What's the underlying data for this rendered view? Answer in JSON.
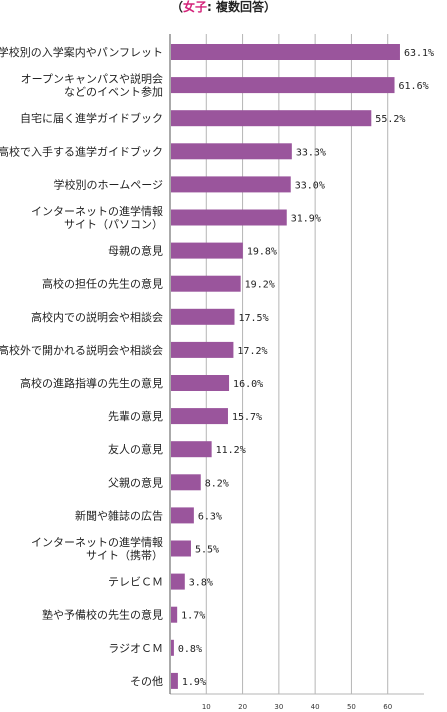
{
  "title": {
    "open": "（",
    "accent": "女子",
    "rest": ": 複数回答）"
  },
  "colors": {
    "bar": "#9a559c",
    "accent": "#d4237a",
    "grid": "#b5b5b5"
  },
  "chart_data": {
    "type": "bar",
    "orientation": "horizontal",
    "categories": [
      [
        "学校別の入学案内やパンフレット"
      ],
      [
        "オープンキャンパスや説明会",
        "などのイベント参加"
      ],
      [
        "自宅に届く進学ガイドブック"
      ],
      [
        "高校で入手する進学ガイドブック"
      ],
      [
        "学校別のホームページ"
      ],
      [
        "インターネットの進学情報",
        "サイト（パソコン）"
      ],
      [
        "母親の意見"
      ],
      [
        "高校の担任の先生の意見"
      ],
      [
        "高校内での説明会や相談会"
      ],
      [
        "高校外で開かれる説明会や相談会"
      ],
      [
        "高校の進路指導の先生の意見"
      ],
      [
        "先輩の意見"
      ],
      [
        "友人の意見"
      ],
      [
        "父親の意見"
      ],
      [
        "新聞や雑誌の広告"
      ],
      [
        "インターネットの進学情報",
        "サイト（携帯）"
      ],
      [
        "テレビＣＭ"
      ],
      [
        "塾や予備校の先生の意見"
      ],
      [
        "ラジオＣＭ"
      ],
      [
        "その他"
      ]
    ],
    "values": [
      63.1,
      61.6,
      55.2,
      33.3,
      33.0,
      31.9,
      19.8,
      19.2,
      17.5,
      17.2,
      16.0,
      15.7,
      11.2,
      8.2,
      6.3,
      5.5,
      3.8,
      1.7,
      0.8,
      1.9
    ],
    "value_labels": [
      "63.1%",
      "61.6%",
      "55.2%",
      "33.3%",
      "33.0%",
      "31.9%",
      "19.8%",
      "19.2%",
      "17.5%",
      "17.2%",
      "16.0%",
      "15.7%",
      "11.2%",
      "8.2%",
      "6.3%",
      "5.5%",
      "3.8%",
      "1.7%",
      "0.8%",
      "1.9%"
    ],
    "xticks": [
      10,
      20,
      30,
      40,
      50,
      60
    ],
    "xlim": [
      0,
      70
    ],
    "grid": true
  }
}
